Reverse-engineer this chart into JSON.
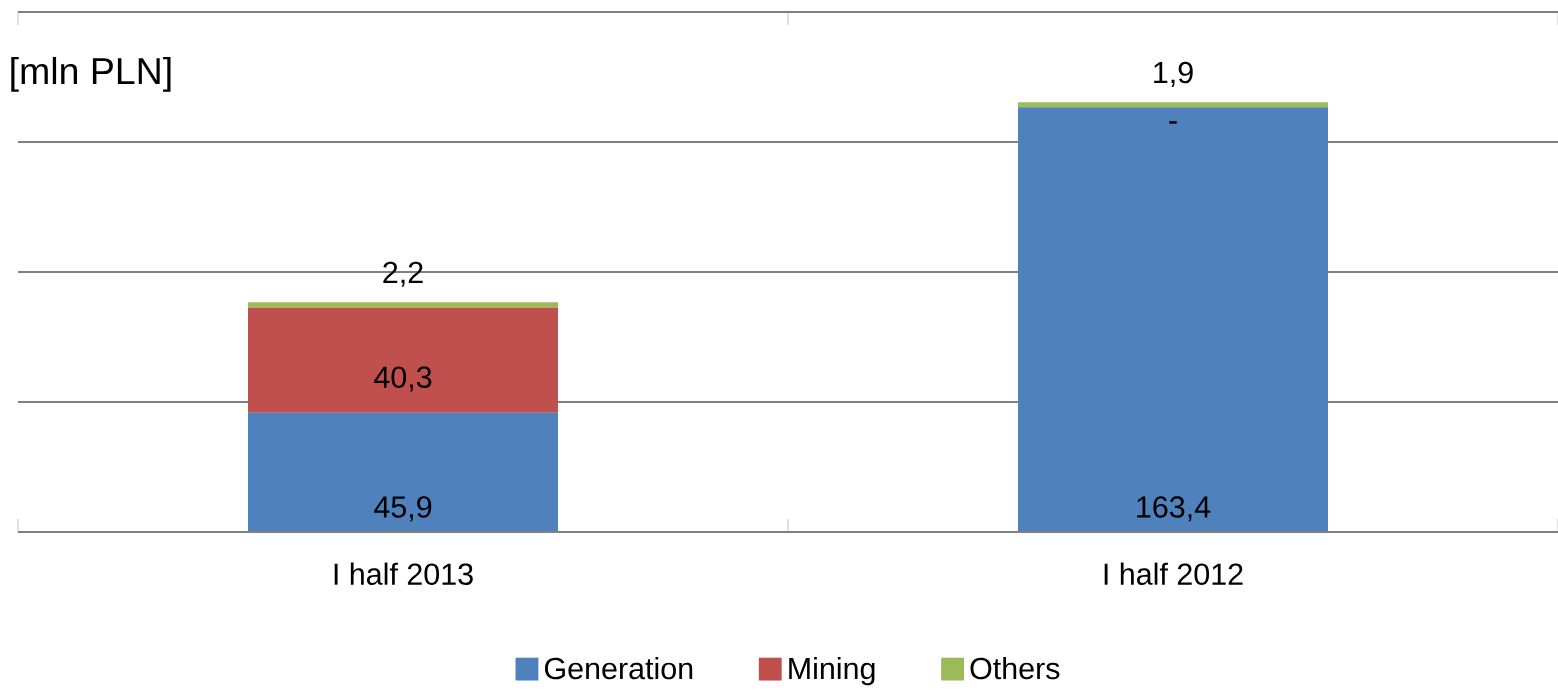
{
  "chart_data": {
    "type": "bar",
    "stacked": true,
    "ylabel": "[mln PLN]",
    "categories": [
      "I half 2013",
      "I half 2012"
    ],
    "series": [
      {
        "name": "Generation",
        "color": "#4f81bd",
        "values": [
          45.9,
          163.4
        ],
        "value_labels": [
          "45,9",
          "163,4"
        ]
      },
      {
        "name": "Mining",
        "color": "#c0504d",
        "values": [
          40.3,
          0
        ],
        "value_labels": [
          "40,3",
          "-"
        ]
      },
      {
        "name": "Others",
        "color": "#9bbb59",
        "values": [
          2.2,
          1.9
        ],
        "value_labels": [
          "2,2",
          "1,9"
        ]
      }
    ],
    "ylim": [
      0,
      200
    ],
    "yticks": [
      {
        "value": 0,
        "label": null
      },
      {
        "value": 50,
        "label": null
      },
      {
        "value": 100,
        "label": null
      },
      {
        "value": 150,
        "label": null
      },
      {
        "value": 200,
        "label": null
      }
    ],
    "tick_labels": "x",
    "grid": "y",
    "legend": "bottom"
  }
}
